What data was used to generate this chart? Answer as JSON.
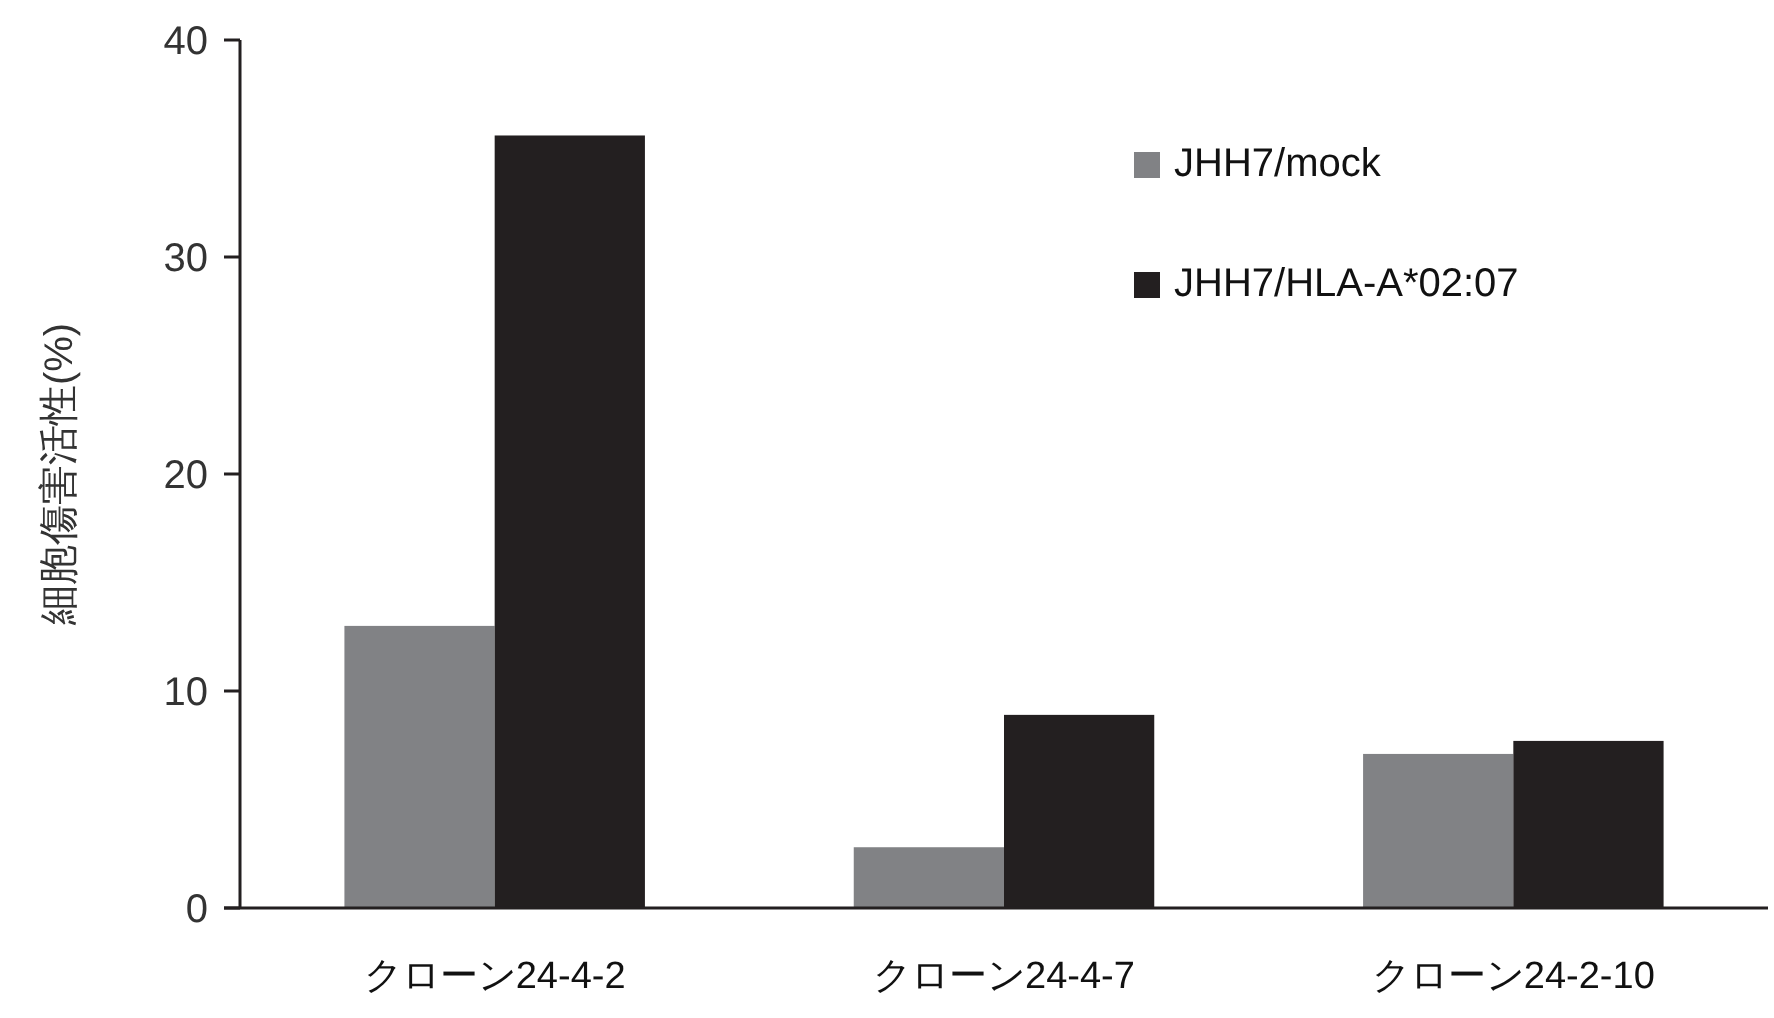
{
  "chart_data": {
    "type": "bar",
    "ylabel": "細胞傷害活性(%)",
    "categories": [
      "クローン24-4-2",
      "クローン24-4-7",
      "クローン24-2-10"
    ],
    "series": [
      {
        "name": "JHH7/mock",
        "color": "#818285",
        "values": [
          13.0,
          2.8,
          7.1
        ]
      },
      {
        "name": "JHH7/HLA-A*02:07",
        "color": "#231f20",
        "values": [
          35.6,
          8.9,
          7.7
        ]
      }
    ],
    "ylim": [
      0,
      40
    ],
    "yticks": [
      0,
      10,
      20,
      30,
      40
    ],
    "grid": false,
    "legend": "top right"
  }
}
